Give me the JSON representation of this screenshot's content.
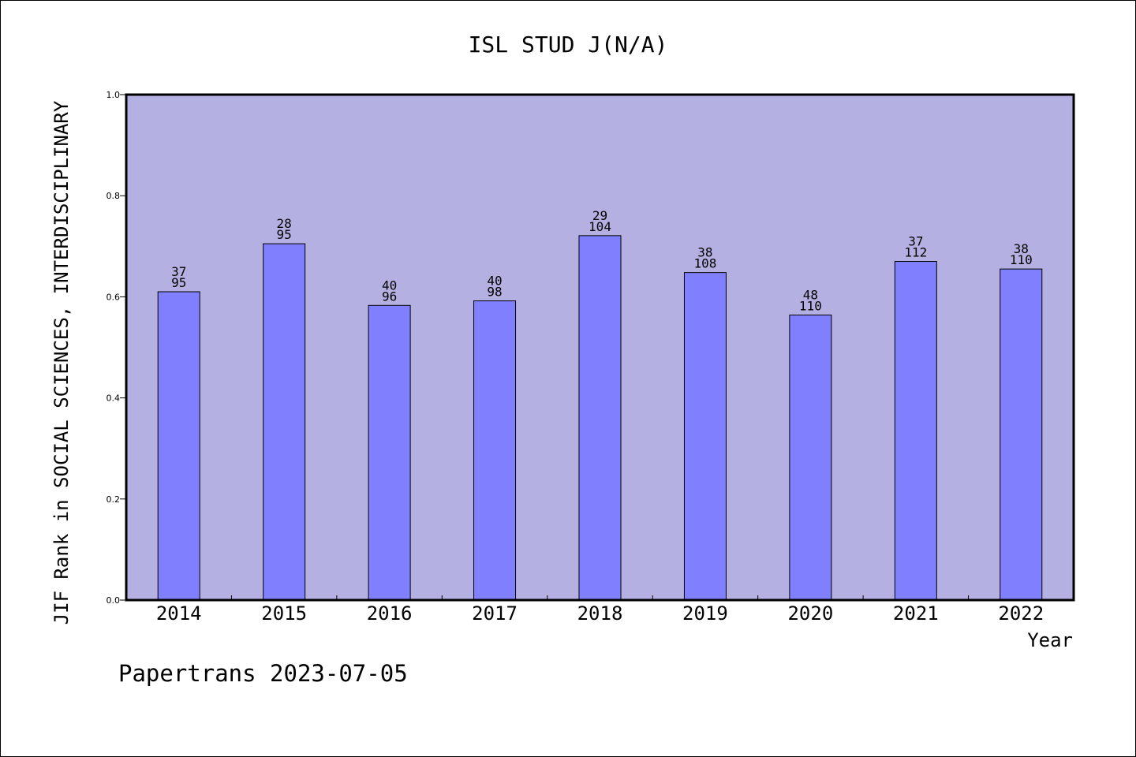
{
  "chart_data": {
    "type": "bar",
    "title": "ISL STUD J(N/A)",
    "xlabel": "Year",
    "ylabel": "JIF Rank in SOCIAL SCIENCES, INTERDISCIPLINARY",
    "ylim": [
      0,
      1.0
    ],
    "yticks": [
      "0.0",
      "0.2",
      "0.4",
      "0.6",
      "0.8",
      "1.0"
    ],
    "categories": [
      "2014",
      "2015",
      "2016",
      "2017",
      "2018",
      "2019",
      "2020",
      "2021",
      "2022"
    ],
    "values": [
      0.61,
      0.705,
      0.583,
      0.592,
      0.721,
      0.648,
      0.564,
      0.67,
      0.655
    ],
    "rank": [
      "37",
      "28",
      "40",
      "40",
      "29",
      "38",
      "48",
      "37",
      "38"
    ],
    "total": [
      "95",
      "95",
      "96",
      "98",
      "104",
      "108",
      "110",
      "112",
      "110"
    ],
    "grid": false,
    "colors": {
      "plot_background": "#b5b0e2",
      "bar_fill": "#8080ff",
      "bar_stroke": "#000000"
    }
  },
  "footer": {
    "credit": "Papertrans 2023-07-05"
  }
}
